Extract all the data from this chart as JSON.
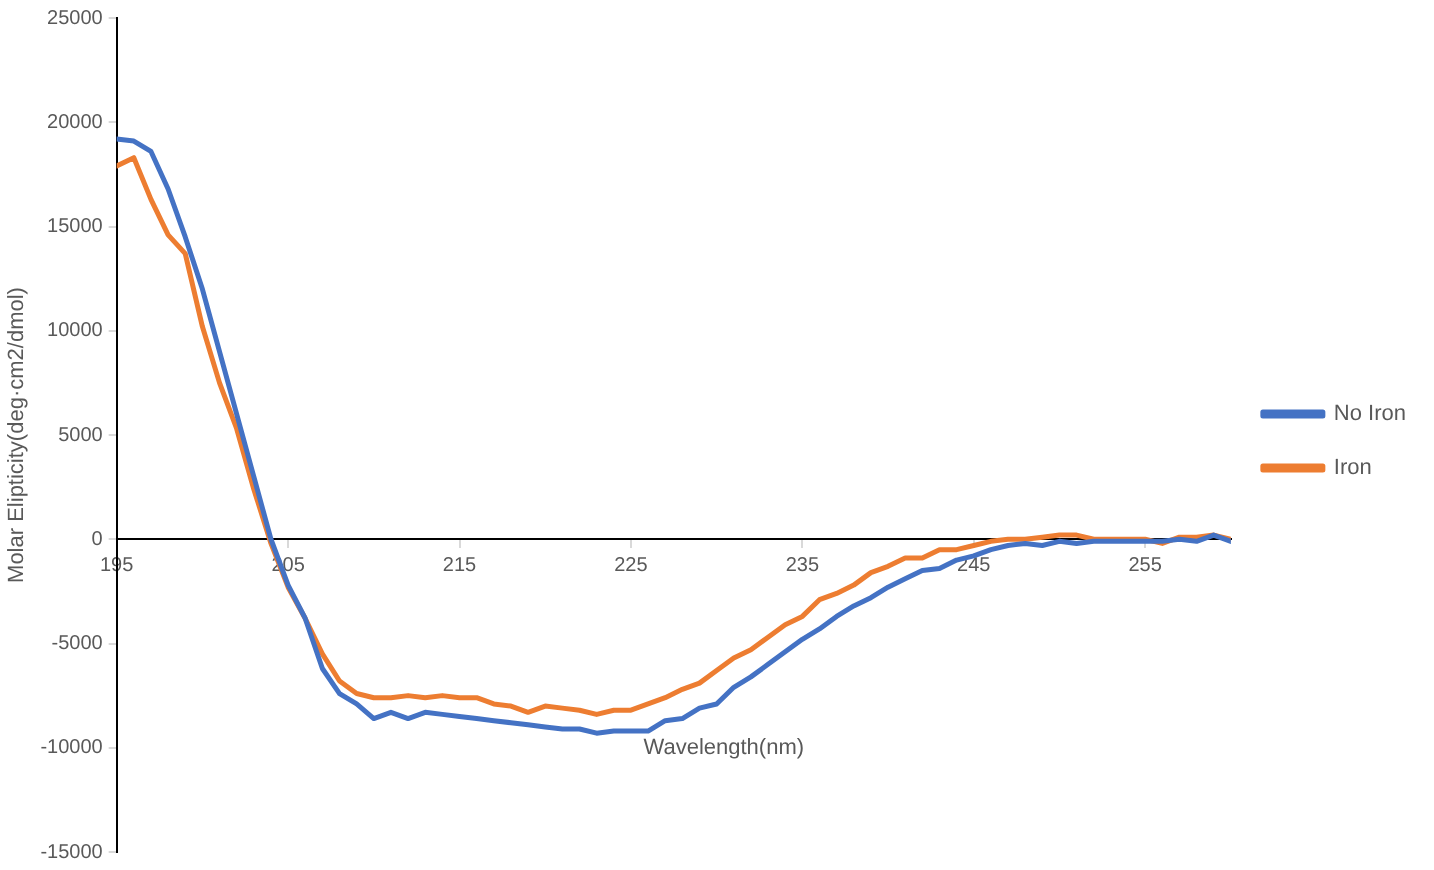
{
  "chart_data": {
    "type": "line",
    "xlabel": "Wavelength(nm)",
    "ylabel": "Molar Elipticity(deg·cm2/dmol)",
    "x": [
      195,
      196,
      197,
      198,
      199,
      200,
      201,
      202,
      203,
      204,
      205,
      206,
      207,
      208,
      209,
      210,
      211,
      212,
      213,
      214,
      215,
      216,
      217,
      218,
      219,
      220,
      221,
      222,
      223,
      224,
      225,
      226,
      227,
      228,
      229,
      230,
      231,
      232,
      233,
      234,
      235,
      236,
      237,
      238,
      239,
      240,
      241,
      242,
      243,
      244,
      245,
      246,
      247,
      248,
      249,
      250,
      251,
      252,
      253,
      254,
      255,
      256,
      257,
      258,
      259,
      260
    ],
    "series": [
      {
        "name": "No Iron",
        "color": "#4472c4",
        "values": [
          19200,
          19100,
          18600,
          16800,
          14500,
          12000,
          9000,
          6000,
          3000,
          0,
          -2200,
          -3800,
          -6200,
          -7400,
          -7900,
          -8600,
          -8300,
          -8600,
          -8300,
          -8400,
          -8500,
          -8600,
          -8700,
          -8800,
          -8900,
          -9000,
          -9100,
          -9100,
          -9300,
          -9200,
          -9200,
          -9200,
          -8700,
          -8600,
          -8100,
          -7900,
          -7100,
          -6600,
          -6000,
          -5400,
          -4800,
          -4300,
          -3700,
          -3200,
          -2800,
          -2300,
          -1900,
          -1500,
          -1400,
          -1000,
          -800,
          -500,
          -300,
          -200,
          -300,
          -100,
          -200,
          -100,
          -100,
          -100,
          -100,
          -100,
          0,
          -100,
          200,
          -100
        ]
      },
      {
        "name": "Iron",
        "color": "#ed7d31",
        "values": [
          17900,
          18300,
          16300,
          14600,
          13700,
          10200,
          7500,
          5300,
          2400,
          -200,
          -2300,
          -3800,
          -5500,
          -6800,
          -7400,
          -7600,
          -7600,
          -7500,
          -7600,
          -7500,
          -7600,
          -7600,
          -7900,
          -8000,
          -8300,
          -8000,
          -8100,
          -8200,
          -8400,
          -8200,
          -8200,
          -7900,
          -7600,
          -7200,
          -6900,
          -6300,
          -5700,
          -5300,
          -4700,
          -4100,
          -3700,
          -2900,
          -2600,
          -2200,
          -1600,
          -1300,
          -900,
          -900,
          -500,
          -500,
          -300,
          -100,
          0,
          0,
          100,
          200,
          200,
          0,
          0,
          0,
          0,
          -200,
          100,
          100,
          200,
          0
        ]
      }
    ],
    "xlim": [
      195,
      260
    ],
    "xticks": [
      195,
      205,
      215,
      225,
      235,
      245,
      255
    ],
    "ylim": [
      -15000,
      25000
    ],
    "yticks": [
      -15000,
      -10000,
      -5000,
      0,
      5000,
      10000,
      15000,
      20000,
      25000
    ],
    "grid": false,
    "legend": "right",
    "marker": "none",
    "line_style": "solid"
  }
}
